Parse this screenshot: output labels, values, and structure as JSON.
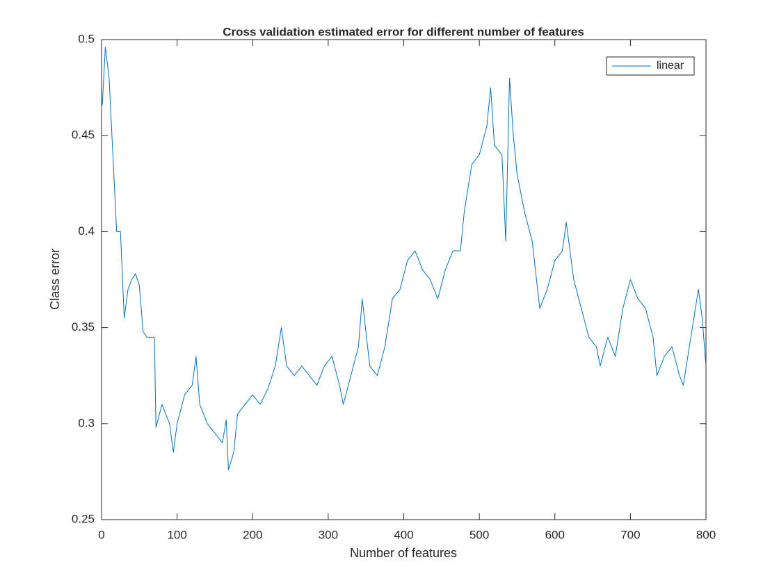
{
  "chart_data": {
    "type": "line",
    "title": "Cross validation estimated error for different number of features",
    "x_label": "Number of features",
    "y_label": "Class error",
    "x": [
      1,
      5,
      10,
      15,
      20,
      25,
      30,
      35,
      40,
      45,
      50,
      55,
      60,
      65,
      70,
      72,
      80,
      90,
      95,
      100,
      110,
      120,
      125,
      130,
      140,
      150,
      160,
      165,
      168,
      175,
      180,
      190,
      200,
      210,
      220,
      230,
      238,
      245,
      255,
      265,
      275,
      285,
      295,
      305,
      315,
      320,
      330,
      340,
      345,
      355,
      365,
      375,
      385,
      395,
      405,
      415,
      425,
      435,
      445,
      455,
      465,
      475,
      480,
      490,
      500,
      510,
      515,
      520,
      530,
      535,
      540,
      545,
      550,
      560,
      570,
      580,
      590,
      600,
      610,
      615,
      625,
      635,
      645,
      655,
      660,
      670,
      680,
      690,
      700,
      710,
      720,
      730,
      735,
      745,
      755,
      765,
      770,
      780,
      790,
      795,
      800
    ],
    "series": [
      {
        "name": "linear",
        "color": "#0072bd",
        "values": [
          0.466,
          0.496,
          0.48,
          0.44,
          0.4,
          0.4,
          0.355,
          0.37,
          0.375,
          0.378,
          0.372,
          0.348,
          0.345,
          0.345,
          0.345,
          0.298,
          0.31,
          0.3,
          0.285,
          0.3,
          0.315,
          0.32,
          0.335,
          0.31,
          0.3,
          0.295,
          0.29,
          0.302,
          0.276,
          0.285,
          0.305,
          0.31,
          0.315,
          0.31,
          0.318,
          0.33,
          0.35,
          0.33,
          0.325,
          0.33,
          0.325,
          0.32,
          0.33,
          0.335,
          0.32,
          0.31,
          0.325,
          0.34,
          0.365,
          0.33,
          0.325,
          0.34,
          0.365,
          0.37,
          0.385,
          0.39,
          0.38,
          0.375,
          0.365,
          0.38,
          0.39,
          0.39,
          0.41,
          0.435,
          0.44,
          0.455,
          0.475,
          0.445,
          0.44,
          0.395,
          0.48,
          0.45,
          0.43,
          0.41,
          0.395,
          0.36,
          0.37,
          0.385,
          0.39,
          0.405,
          0.375,
          0.36,
          0.345,
          0.34,
          0.33,
          0.345,
          0.335,
          0.36,
          0.375,
          0.365,
          0.36,
          0.345,
          0.325,
          0.335,
          0.34,
          0.325,
          0.32,
          0.345,
          0.37,
          0.355,
          0.33
        ]
      }
    ],
    "xlim": [
      0,
      800
    ],
    "xticks": [
      0,
      100,
      200,
      300,
      400,
      500,
      600,
      700,
      800
    ],
    "ylim": [
      0.25,
      0.5
    ],
    "yticks": [
      0.25,
      0.3,
      0.35,
      0.4,
      0.45,
      0.5
    ],
    "grid": false,
    "legend": "northeast"
  }
}
